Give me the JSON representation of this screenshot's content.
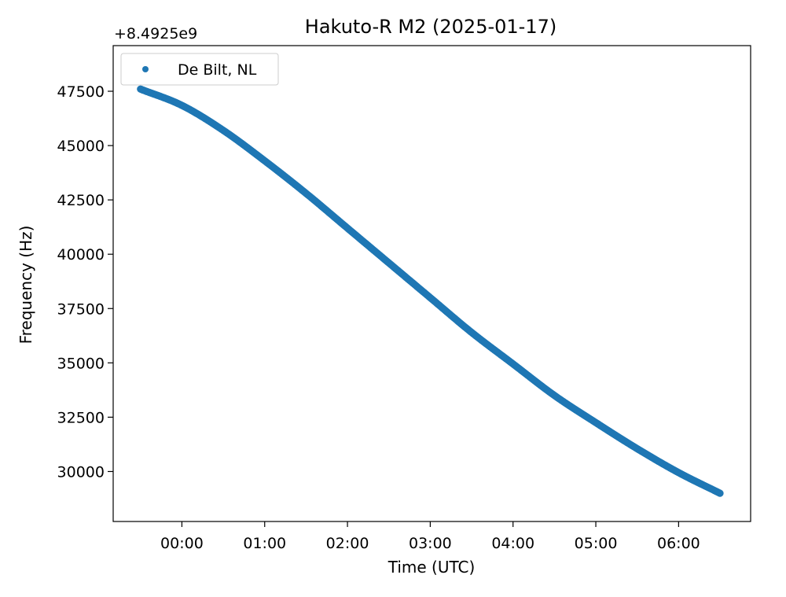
{
  "chart_data": {
    "type": "scatter",
    "title": "Hakuto-R M2 (2025-01-17)",
    "xlabel": "Time (UTC)",
    "ylabel": "Frequency (Hz)",
    "y_offset_label": "+8.4925e9",
    "y_offset": 8492500000,
    "x_unit": "hours since 2025-01-17 00:00 UTC",
    "xlim": [
      -0.83,
      6.87
    ],
    "ylim": [
      27700,
      49600
    ],
    "xticks": [
      0,
      1,
      2,
      3,
      4,
      5,
      6
    ],
    "xtick_labels": [
      "00:00",
      "01:00",
      "02:00",
      "03:00",
      "04:00",
      "05:00",
      "06:00"
    ],
    "yticks": [
      30000,
      32500,
      35000,
      37500,
      40000,
      42500,
      45000,
      47500
    ],
    "ytick_labels": [
      "30000",
      "32500",
      "35000",
      "37500",
      "40000",
      "42500",
      "45000",
      "47500"
    ],
    "grid": false,
    "legend_position": "top-left",
    "series": [
      {
        "name": "De Bilt, NL",
        "color": "#1f77b4",
        "marker": "point",
        "x": [
          -0.5,
          0.0,
          0.5,
          1.0,
          1.5,
          2.0,
          2.5,
          3.0,
          3.5,
          4.0,
          4.5,
          5.0,
          5.5,
          6.0,
          6.5
        ],
        "y": [
          47600,
          46850,
          45700,
          44300,
          42800,
          41200,
          39600,
          38000,
          36400,
          34950,
          33500,
          32250,
          31050,
          29950,
          29000
        ]
      }
    ]
  },
  "legend": {
    "label": "De Bilt, NL"
  }
}
